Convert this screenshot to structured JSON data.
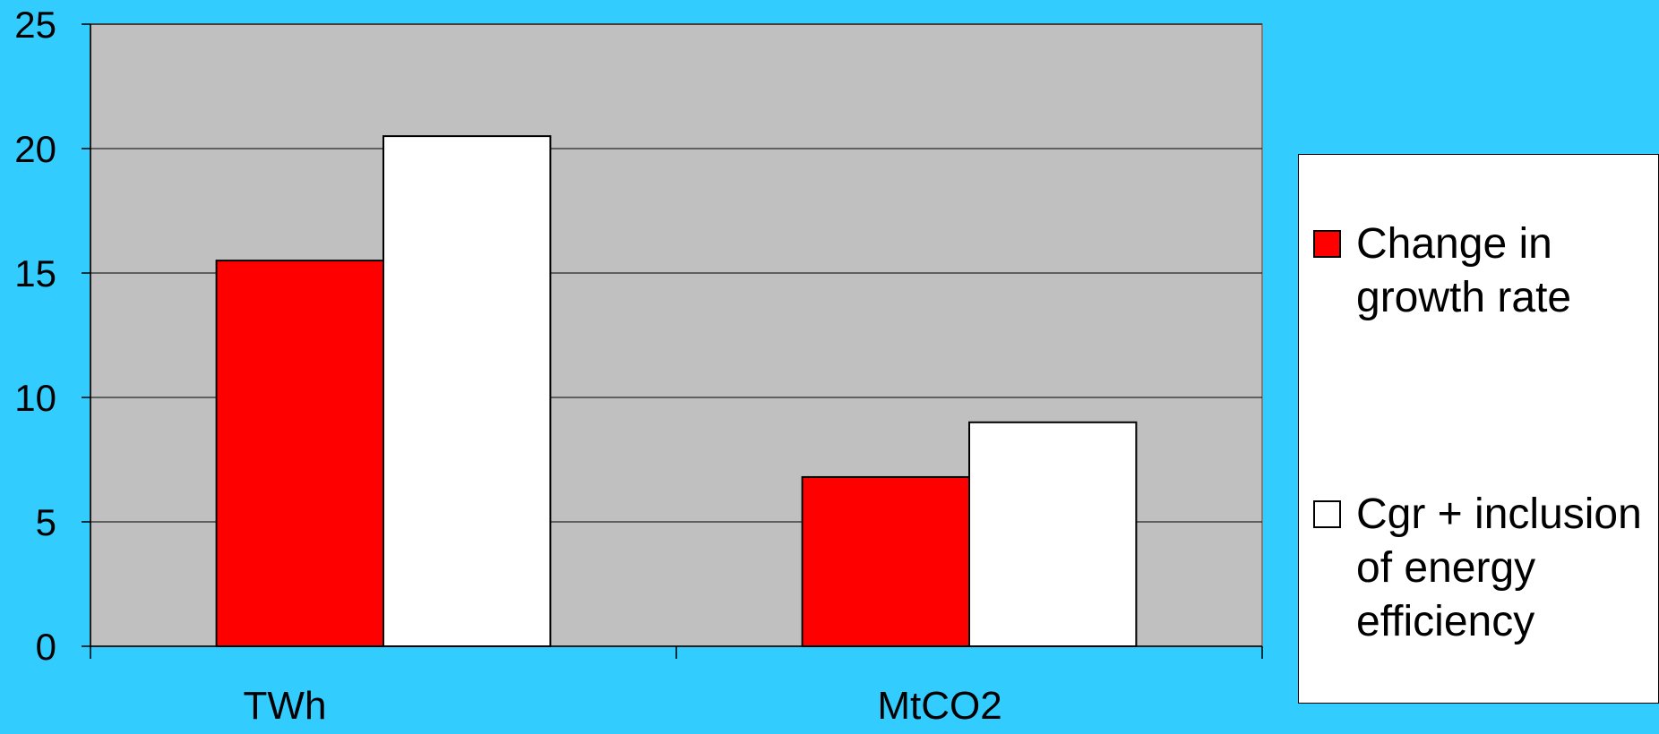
{
  "chart_data": {
    "type": "bar",
    "title": "",
    "xlabel": "",
    "ylabel": "",
    "categories": [
      "TWh",
      "MtCO2"
    ],
    "series": [
      {
        "name": "Change in growth rate",
        "values": [
          15.5,
          6.8
        ],
        "color": "#FF0000"
      },
      {
        "name": "Cgr + inclusion of energy efficiency",
        "values": [
          20.5,
          9.0
        ],
        "color": "#FFFFFF"
      }
    ],
    "ylim": [
      0,
      25
    ],
    "yticks": [
      0,
      5,
      10,
      15,
      20,
      25
    ],
    "ytick_labels": [
      "0",
      "5",
      "10",
      "15",
      "20",
      "25"
    ],
    "grid": true,
    "legend_position": "right",
    "legend_labels": [
      "Change in\ngrowth rate",
      "Cgr + inclusion\nof energy\nefficiency"
    ],
    "colors": {
      "background": "#33CCFF",
      "plot_area": "#C0C0C0",
      "gridline": "#000000"
    }
  }
}
